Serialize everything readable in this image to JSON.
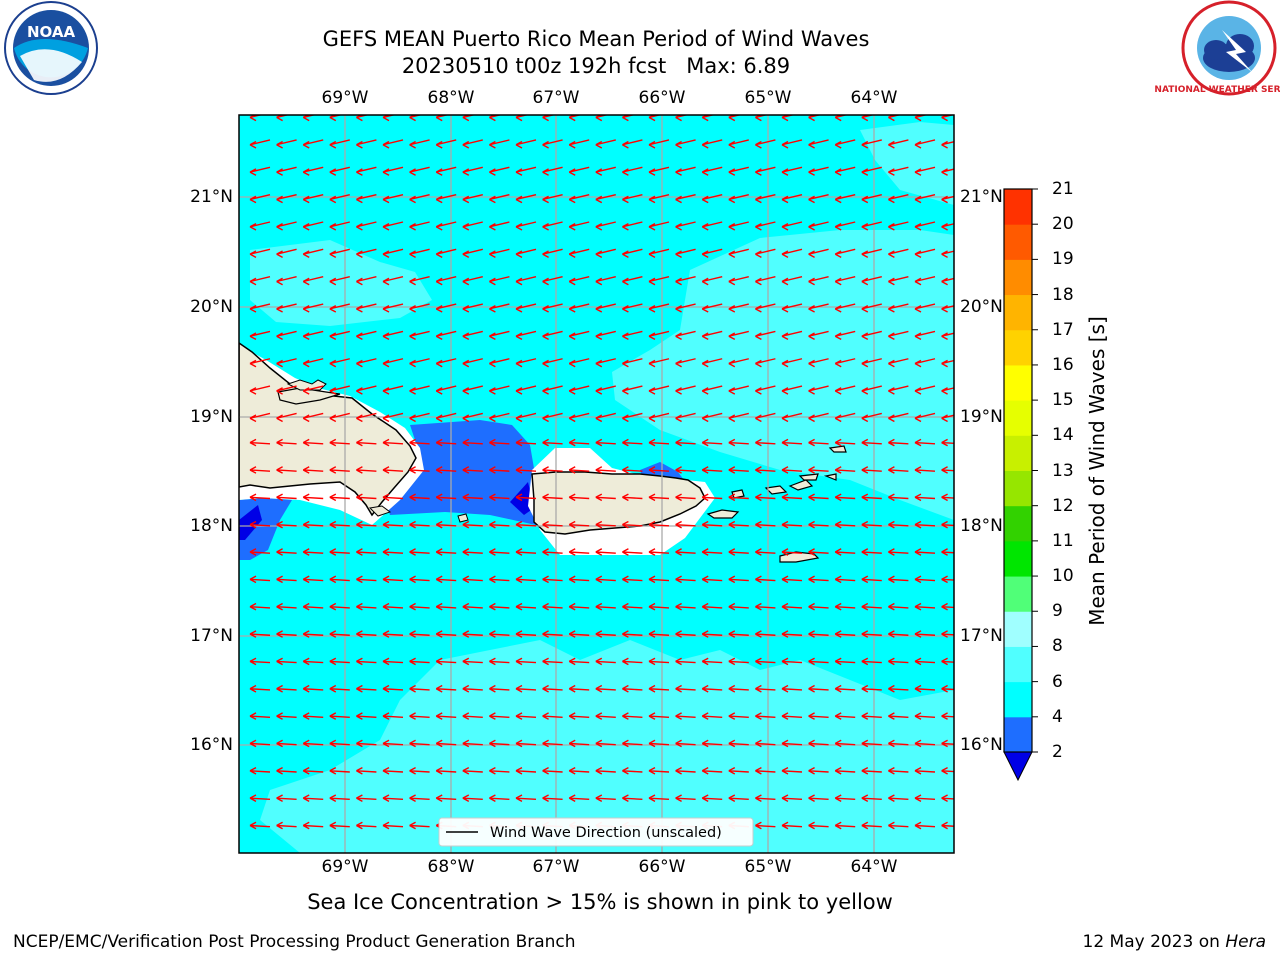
{
  "title": {
    "line1": "GEFS MEAN Puerto Rico Mean Period of Wind Waves",
    "line2": "20230510 t00z 192h fcst   Max: 6.89"
  },
  "lon_labels": [
    "69°W",
    "68°W",
    "67°W",
    "66°W",
    "65°W",
    "64°W"
  ],
  "lat_labels": [
    "21°N",
    "20°N",
    "19°N",
    "18°N",
    "17°N",
    "16°N"
  ],
  "legend": {
    "label": "Wind Wave Direction (unscaled)"
  },
  "colorbar": {
    "title": "Mean Period of Wind Waves [s]",
    "ticks": [
      "2",
      "4",
      "6",
      "8",
      "9",
      "10",
      "11",
      "12",
      "13",
      "14",
      "15",
      "16",
      "17",
      "18",
      "19",
      "20",
      "21"
    ],
    "colors": [
      "#0000e6",
      "#1e6eff",
      "#00ffff",
      "#50ffff",
      "#a0ffff",
      "#50ff78",
      "#00e600",
      "#32d200",
      "#96e600",
      "#c8f000",
      "#e6ff00",
      "#ffff00",
      "#ffd200",
      "#ffb400",
      "#ff8c00",
      "#ff5a00",
      "#ff3200",
      "#ff0000"
    ]
  },
  "footer": {
    "note": "Sea Ice Concentration > 15% is shown in pink to yellow",
    "credit": "NCEP/EMC/Verification Post Processing Product Generation Branch",
    "date": "12 May 2023 on",
    "machine": "Hera"
  },
  "logos": {
    "noaa_text": "NOAA",
    "nws_text": "NATIONAL WEATHER SERVICE"
  },
  "map_colors": {
    "land": "#eeecd9",
    "ocean_6_8": "#00ffff",
    "ocean_8_9": "#50ffff",
    "ocean_4_6": "#1e6eff",
    "ocean_2_4": "#0000e6",
    "arrow": "#ff0000",
    "grid": "#aaaaaa"
  }
}
